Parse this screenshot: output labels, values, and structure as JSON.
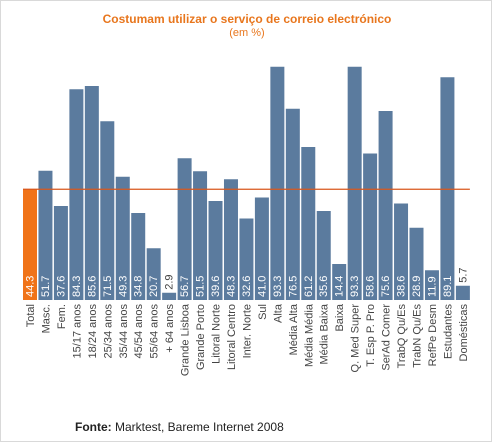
{
  "chart_data": {
    "type": "bar",
    "title": "Costumam utilizar o serviço de correio electrónico",
    "subtitle": "(em %)",
    "categories": [
      "Total",
      "Masc.",
      "Fem.",
      "15/17 anos",
      "18/24 anos",
      "25/34 anos",
      "35/44 anos",
      "45/54 anos",
      "55/64 anos",
      "+ 64 anos",
      "Grande Lisboa",
      "Grande Porto",
      "Litoral Norte",
      "Litoral Centro",
      "Inter. Norte",
      "Sul",
      "Alta",
      "Média Alta",
      "Média Média",
      "Média Baixa",
      "Baixa",
      "Q. Med Super",
      "T. Esp P. Pro",
      "SerAd Comer",
      "TrabQ Qu/Es",
      "TrabN Qu/Es",
      "RefPe Desm",
      "Estudantes",
      "Domésticas"
    ],
    "values": [
      44.3,
      51.7,
      37.6,
      84.3,
      85.6,
      71.5,
      49.3,
      34.8,
      20.7,
      2.9,
      56.7,
      51.5,
      39.6,
      48.3,
      32.6,
      41.0,
      93.3,
      76.5,
      61.2,
      35.6,
      14.4,
      93.3,
      58.6,
      75.6,
      38.6,
      28.9,
      11.9,
      89.1,
      5.7
    ],
    "value_labels": [
      "44.3",
      "51.7",
      "37.6",
      "84.3",
      "85.6",
      "71.5",
      "49.3",
      "34.8",
      "20.7",
      "2.9",
      "56.7",
      "51.5",
      "39.6",
      "48.3",
      "32.6",
      "41.0",
      "93.3",
      "76.5",
      "61.2",
      "35.6",
      "14.4",
      "93.3",
      "58.6",
      "75.6",
      "38.6",
      "28.9",
      "11.9",
      "89.1",
      "5.7"
    ],
    "highlight_index": 0,
    "reference_line": 44.3,
    "ylim": [
      0,
      100
    ],
    "grid": false,
    "xlabel": "",
    "ylabel": "",
    "colors": {
      "bar": "#5b7b9e",
      "highlight": "#f07318",
      "reference_line": "#d9571c",
      "title": "#e8761d",
      "label": "#ffffff",
      "axis_text": "#444444"
    }
  },
  "source": {
    "label": "Fonte:",
    "text": " Marktest, Bareme Internet 2008"
  }
}
